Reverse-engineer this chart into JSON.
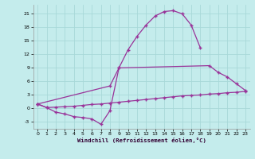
{
  "xlabel": "Windchill (Refroidissement éolien,°C)",
  "bg_color": "#c4ecec",
  "grid_color": "#a8d8d8",
  "line_color": "#993399",
  "ylim": [
    -4.5,
    23
  ],
  "xlim": [
    -0.5,
    23.5
  ],
  "yticks": [
    -3,
    0,
    3,
    6,
    9,
    12,
    15,
    18,
    21
  ],
  "xticks": [
    0,
    1,
    2,
    3,
    4,
    5,
    6,
    7,
    8,
    9,
    10,
    11,
    12,
    13,
    14,
    15,
    16,
    17,
    18,
    19,
    20,
    21,
    22,
    23
  ],
  "line1_x": [
    0,
    1,
    2,
    3,
    4,
    5,
    6,
    7,
    8,
    9,
    10,
    11,
    12,
    13,
    14,
    15,
    16,
    17,
    18
  ],
  "line1_y": [
    1.0,
    0.2,
    -0.8,
    -1.2,
    -1.8,
    -2.0,
    -2.3,
    -3.5,
    -0.5,
    9.0,
    13.0,
    16.0,
    18.5,
    20.5,
    21.5,
    21.7,
    21.0,
    18.5,
    13.5
  ],
  "line2_x": [
    0,
    8,
    9,
    19,
    20,
    21,
    22,
    23
  ],
  "line2_y": [
    1.0,
    5.0,
    9.0,
    9.5,
    8.0,
    7.0,
    5.5,
    4.0
  ],
  "line3_x": [
    0,
    1,
    2,
    3,
    4,
    5,
    6,
    7,
    8,
    9,
    10,
    11,
    12,
    13,
    14,
    15,
    16,
    17,
    18,
    19,
    20,
    21,
    22,
    23
  ],
  "line3_y": [
    1.0,
    0.2,
    0.3,
    0.4,
    0.5,
    0.7,
    0.9,
    1.0,
    1.2,
    1.4,
    1.6,
    1.8,
    2.0,
    2.2,
    2.4,
    2.6,
    2.8,
    2.9,
    3.0,
    3.2,
    3.3,
    3.5,
    3.6,
    3.8
  ]
}
